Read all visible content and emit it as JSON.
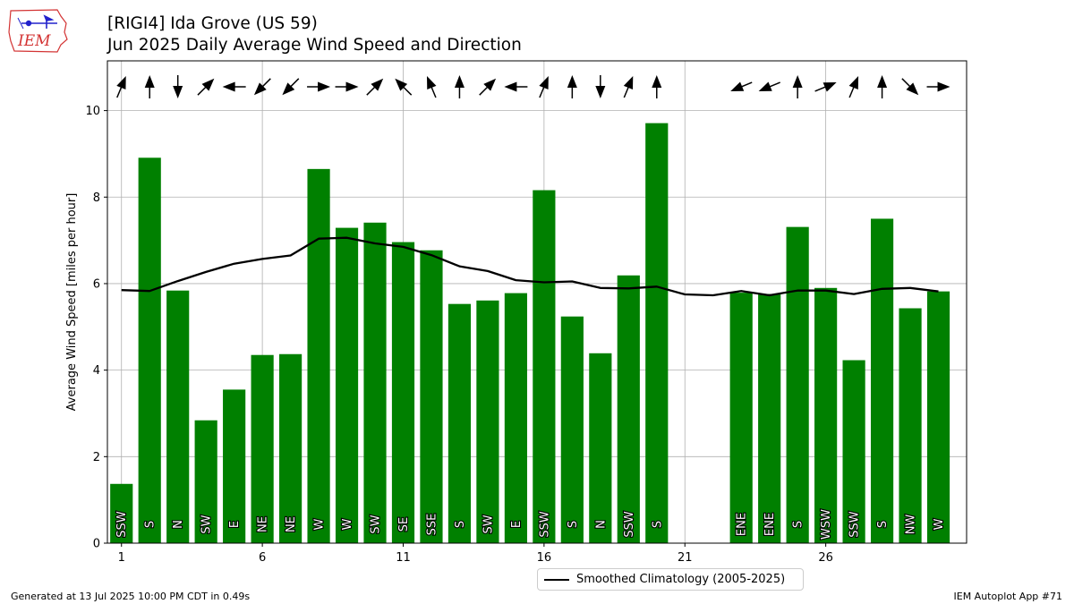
{
  "title": "[RIGI4] Ida Grove (US 59)",
  "subtitle": "Jun 2025 Daily Average Wind Speed and Direction",
  "logo_text": "IEM",
  "footer_left": "Generated at 13 Jul 2025 10:00 PM CDT in 0.49s",
  "footer_right": "IEM Autoplot App #71",
  "colors": {
    "bar": "#008000",
    "climatology": "#000000",
    "grid": "#b0b0b0",
    "logo": "#d33333"
  },
  "chart_data": {
    "type": "bar",
    "ylabel": "Average Wind Speed [miles per hour]",
    "xlabel": "",
    "xlim": [
      0.5,
      31.0
    ],
    "ylim": [
      0,
      11.15
    ],
    "grid": true,
    "legend_position": "bottom-center",
    "xticks": [
      1,
      6,
      11,
      16,
      21,
      26
    ],
    "yticks": [
      0,
      2,
      4,
      6,
      8,
      10
    ],
    "bars": [
      {
        "day": 1,
        "value": 1.37,
        "dir": "SSW",
        "deg": 202.5
      },
      {
        "day": 2,
        "value": 8.91,
        "dir": "S",
        "deg": 180
      },
      {
        "day": 3,
        "value": 5.84,
        "dir": "N",
        "deg": 0
      },
      {
        "day": 4,
        "value": 2.84,
        "dir": "SW",
        "deg": 225
      },
      {
        "day": 5,
        "value": 3.55,
        "dir": "E",
        "deg": 90
      },
      {
        "day": 6,
        "value": 4.35,
        "dir": "NE",
        "deg": 45
      },
      {
        "day": 7,
        "value": 4.37,
        "dir": "NE",
        "deg": 45
      },
      {
        "day": 8,
        "value": 8.65,
        "dir": "W",
        "deg": 270
      },
      {
        "day": 9,
        "value": 7.29,
        "dir": "W",
        "deg": 270
      },
      {
        "day": 10,
        "value": 7.41,
        "dir": "SW",
        "deg": 225
      },
      {
        "day": 11,
        "value": 6.96,
        "dir": "SE",
        "deg": 135
      },
      {
        "day": 12,
        "value": 6.77,
        "dir": "SSE",
        "deg": 157.5
      },
      {
        "day": 13,
        "value": 5.53,
        "dir": "S",
        "deg": 180
      },
      {
        "day": 14,
        "value": 5.61,
        "dir": "SW",
        "deg": 225
      },
      {
        "day": 15,
        "value": 5.78,
        "dir": "E",
        "deg": 90
      },
      {
        "day": 16,
        "value": 8.16,
        "dir": "SSW",
        "deg": 202.5
      },
      {
        "day": 17,
        "value": 5.24,
        "dir": "S",
        "deg": 180
      },
      {
        "day": 18,
        "value": 4.39,
        "dir": "N",
        "deg": 0
      },
      {
        "day": 19,
        "value": 6.19,
        "dir": "SSW",
        "deg": 202.5
      },
      {
        "day": 20,
        "value": 9.71,
        "dir": "S",
        "deg": 180
      },
      {
        "day": 23,
        "value": 5.79,
        "dir": "ENE",
        "deg": 67.5
      },
      {
        "day": 24,
        "value": 5.76,
        "dir": "ENE",
        "deg": 67.5
      },
      {
        "day": 25,
        "value": 7.31,
        "dir": "S",
        "deg": 180
      },
      {
        "day": 26,
        "value": 5.9,
        "dir": "WSW",
        "deg": 247.5
      },
      {
        "day": 27,
        "value": 4.23,
        "dir": "SSW",
        "deg": 202.5
      },
      {
        "day": 28,
        "value": 7.5,
        "dir": "S",
        "deg": 180
      },
      {
        "day": 29,
        "value": 5.43,
        "dir": "NW",
        "deg": 315
      },
      {
        "day": 30,
        "value": 5.82,
        "dir": "W",
        "deg": 270
      }
    ],
    "series": [
      {
        "name": "Smoothed Climatology (2005-2025)",
        "type": "line",
        "x": [
          1,
          2,
          3,
          4,
          5,
          6,
          7,
          8,
          9,
          10,
          11,
          12,
          13,
          14,
          15,
          16,
          17,
          18,
          19,
          20,
          21,
          22,
          23,
          24,
          25,
          26,
          27,
          28,
          29,
          30
        ],
        "values": [
          5.85,
          5.83,
          6.06,
          6.27,
          6.46,
          6.57,
          6.65,
          7.04,
          7.06,
          6.93,
          6.85,
          6.66,
          6.4,
          6.29,
          6.08,
          6.03,
          6.05,
          5.9,
          5.89,
          5.93,
          5.75,
          5.73,
          5.83,
          5.73,
          5.84,
          5.84,
          5.76,
          5.88,
          5.9,
          5.82
        ]
      }
    ]
  }
}
